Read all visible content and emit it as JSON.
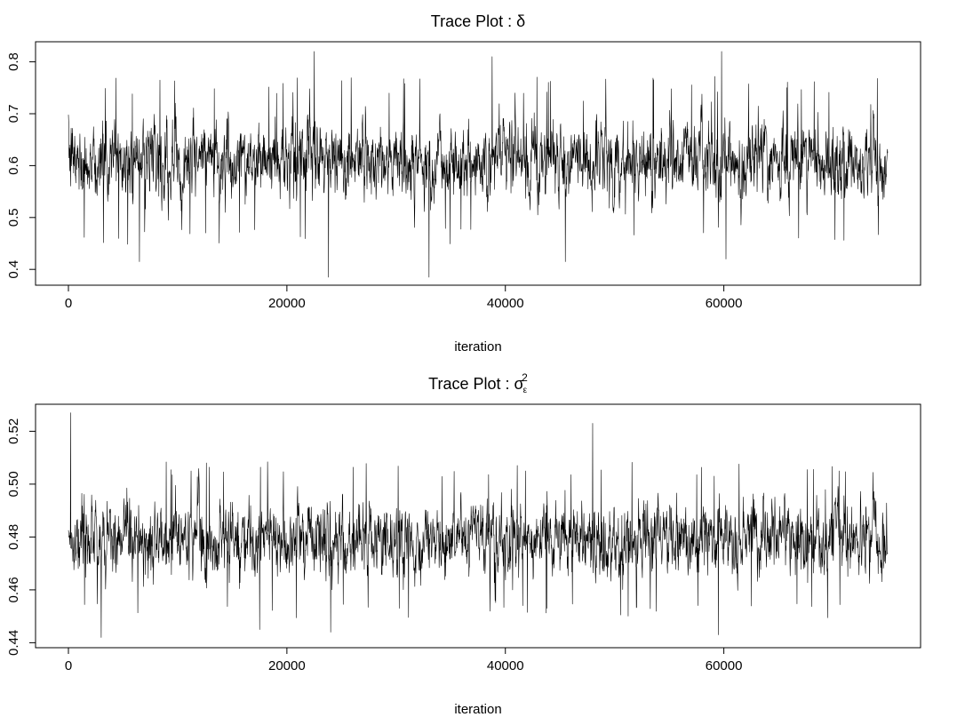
{
  "chart_data": [
    {
      "type": "line",
      "title": "Trace Plot : δ",
      "title_prefix": "Trace Plot : ",
      "title_symbol": "δ",
      "xlabel": "iteration",
      "ylabel": "",
      "xlim": [
        0,
        75000
      ],
      "ylim": [
        0.38,
        0.83
      ],
      "x_ticks": [
        0,
        20000,
        40000,
        60000
      ],
      "x_tick_labels": [
        "0",
        "20000",
        "40000",
        "60000"
      ],
      "y_ticks": [
        0.4,
        0.5,
        0.6,
        0.7,
        0.8
      ],
      "y_tick_labels": [
        "0.4",
        "0.5",
        "0.6",
        "0.7",
        "0.8"
      ],
      "grid": false,
      "series": [
        {
          "x_start": 0,
          "x_end": 75000,
          "center": 0.61,
          "typical_range": [
            0.48,
            0.75
          ],
          "min": 0.385,
          "max": 0.82,
          "extremes": [
            {
              "x": 6500,
              "y": 0.415
            },
            {
              "x": 22500,
              "y": 0.82
            },
            {
              "x": 23800,
              "y": 0.385
            },
            {
              "x": 33000,
              "y": 0.385
            },
            {
              "x": 38800,
              "y": 0.81
            },
            {
              "x": 45500,
              "y": 0.415
            },
            {
              "x": 59800,
              "y": 0.82
            },
            {
              "x": 60200,
              "y": 0.42
            }
          ]
        }
      ]
    },
    {
      "type": "line",
      "title": "Trace Plot : σε²",
      "title_prefix": "Trace Plot : ",
      "title_symbol": "σ",
      "title_sub": "ε",
      "title_sup": "2",
      "xlabel": "iteration",
      "ylabel": "",
      "xlim": [
        0,
        75000
      ],
      "ylim": [
        0.44,
        0.53
      ],
      "x_ticks": [
        0,
        20000,
        40000,
        60000
      ],
      "x_tick_labels": [
        "0",
        "20000",
        "40000",
        "60000"
      ],
      "y_ticks": [
        0.44,
        0.46,
        0.48,
        0.5,
        0.52
      ],
      "y_tick_labels": [
        "0.44",
        "0.46",
        "0.48",
        "0.50",
        "0.52"
      ],
      "grid": false,
      "series": [
        {
          "x_start": 0,
          "x_end": 75000,
          "center": 0.479,
          "typical_range": [
            0.455,
            0.505
          ],
          "min": 0.442,
          "max": 0.527,
          "extremes": [
            {
              "x": 200,
              "y": 0.527
            },
            {
              "x": 3000,
              "y": 0.442
            },
            {
              "x": 17500,
              "y": 0.445
            },
            {
              "x": 24000,
              "y": 0.444
            },
            {
              "x": 48000,
              "y": 0.523
            },
            {
              "x": 59500,
              "y": 0.443
            }
          ]
        }
      ]
    }
  ]
}
